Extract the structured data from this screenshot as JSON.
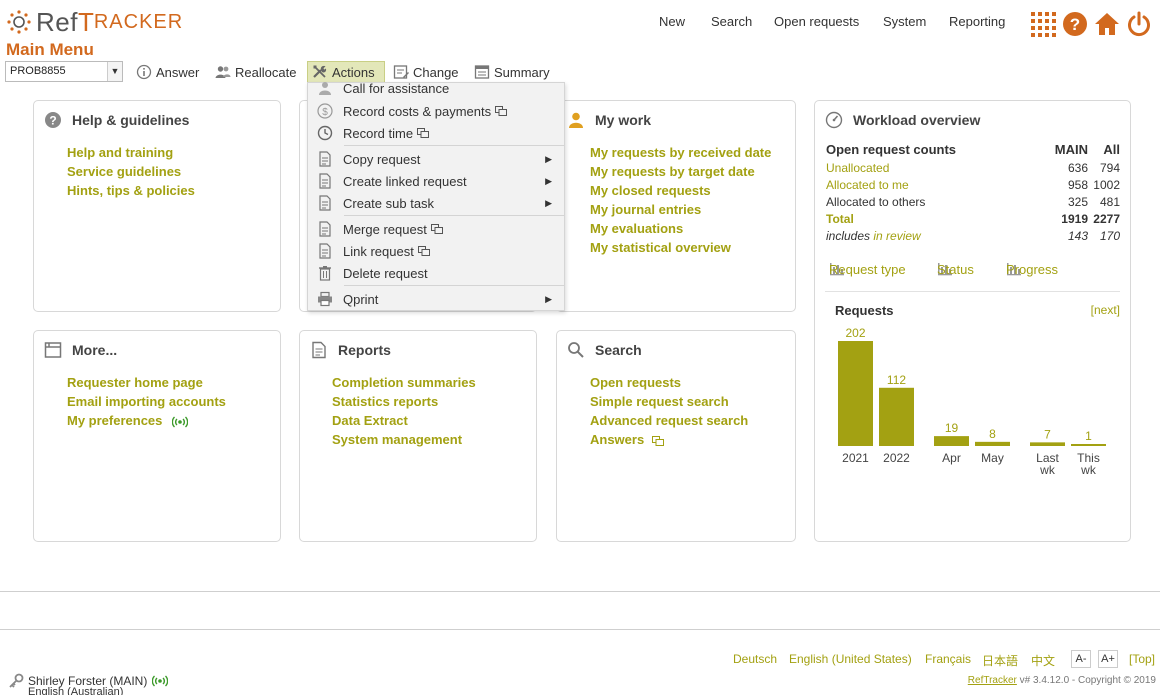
{
  "app": {
    "logo_ref": "Ref",
    "logo_t": "T",
    "logo_racker": "RACKER",
    "page_title": "Main Menu"
  },
  "topnav": {
    "items": [
      "New",
      "Search",
      "Open requests",
      "System",
      "Reporting"
    ],
    "icons": [
      "apps-grid-icon",
      "help-icon",
      "home-icon",
      "power-icon"
    ]
  },
  "toolbar": {
    "request_id": "PROB8855",
    "answer": "Answer",
    "reallocate": "Reallocate",
    "actions": "Actions",
    "change": "Change",
    "summary": "Summary"
  },
  "actions_menu": {
    "items": [
      "Call for assistance",
      "Record costs & payments",
      "Record time",
      "Copy request",
      "Create linked request",
      "Create sub task",
      "Merge request",
      "Link request",
      "Delete request",
      "Qprint"
    ]
  },
  "help": {
    "title": "Help & guidelines",
    "links": [
      "Help and training",
      "Service guidelines",
      "Hints, tips & policies"
    ]
  },
  "mywork": {
    "title": "My work",
    "links": [
      "My requests by received date",
      "My requests by target date",
      "My closed requests",
      "My journal entries",
      "My evaluations",
      "My statistical overview"
    ]
  },
  "more": {
    "title": "More...",
    "links": [
      "Requester home page",
      "Email importing accounts",
      "My preferences"
    ]
  },
  "reports": {
    "title": "Reports",
    "links": [
      "Completion summaries",
      "Statistics reports",
      "Data Extract",
      "System management"
    ]
  },
  "search": {
    "title": "Search",
    "links": [
      "Open requests",
      "Simple request search",
      "Advanced request search",
      "Answers"
    ]
  },
  "workload": {
    "title": "Workload overview",
    "head_label": "Open request counts",
    "col1": "MAIN",
    "col2": "All",
    "rows": [
      {
        "label": "Unallocated",
        "main": "636",
        "all": "794"
      },
      {
        "label": "Allocated to me",
        "main": "958",
        "all": "1002"
      },
      {
        "label": "Allocated to others",
        "main": "325",
        "all": "481"
      },
      {
        "label": "Total",
        "main": "1919",
        "all": "2277"
      }
    ],
    "includes_text": "includes",
    "in_review": "in review",
    "review_main": "143",
    "review_all": "170",
    "tabs": [
      "Request type",
      "Status",
      "Progress"
    ],
    "requests_label": "Requests",
    "next_label": "[next]"
  },
  "chart_data": {
    "type": "bar",
    "title": "Requests",
    "categories": [
      "2021",
      "2022",
      "Apr",
      "May",
      "Last wk",
      "This wk"
    ],
    "values": [
      202,
      112,
      19,
      8,
      7,
      1
    ],
    "colors": {
      "bar": "#a3a112"
    }
  },
  "footer": {
    "languages": [
      "Deutsch",
      "English (United States)",
      "Français",
      "日本語",
      "中文"
    ],
    "font_smaller": "A-",
    "font_larger": "A+",
    "top_link": "[Top]",
    "user": "Shirley Forster (MAIN)",
    "user_locale": "English (Australian)",
    "version_link": "RefTracker",
    "version_text": "v# 3.4.12.0 - Copyright © 2019"
  },
  "colors": {
    "accent": "#d2691e",
    "link": "#a3a112"
  }
}
